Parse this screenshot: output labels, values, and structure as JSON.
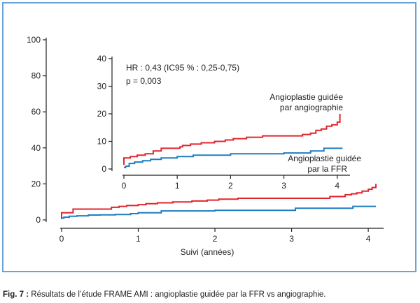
{
  "chart_data": [
    {
      "type": "line",
      "xlabel": "Suivi (années)",
      "xlim": [
        0,
        4.2
      ],
      "ylim": [
        0,
        100
      ],
      "x_ticks": [
        "0",
        "1",
        "2",
        "3",
        "4"
      ],
      "y_ticks": [
        "0",
        "20",
        "40",
        "60",
        "80",
        "100"
      ],
      "series": [
        {
          "color": "#e0262d",
          "x": [
            0.0,
            0.0,
            0.15,
            0.15,
            0.5,
            0.65,
            0.75,
            0.85,
            1.0,
            1.1,
            1.25,
            1.45,
            1.7,
            1.9,
            2.05,
            2.3,
            2.6,
            3.0,
            3.3,
            3.5,
            3.7,
            3.78,
            3.85,
            3.92,
            4.0,
            4.05,
            4.1
          ],
          "y": [
            0.5,
            4.0,
            4.0,
            6.0,
            6.0,
            7.0,
            7.5,
            8.0,
            8.5,
            9.0,
            9.5,
            10.0,
            10.5,
            11.0,
            11.5,
            12.0,
            12.0,
            12.0,
            12.0,
            13.0,
            14.0,
            14.5,
            15.0,
            16.0,
            17.0,
            18.0,
            20.0
          ]
        },
        {
          "color": "#1f7dc0",
          "x": [
            0.0,
            0.03,
            0.1,
            0.2,
            0.35,
            0.5,
            0.7,
            0.9,
            1.0,
            1.3,
            2.0,
            3.05,
            3.5,
            3.8,
            4.1
          ],
          "y": [
            1.0,
            1.5,
            2.0,
            2.3,
            2.7,
            2.8,
            3.0,
            3.5,
            4.0,
            5.0,
            5.3,
            6.5,
            6.5,
            7.5,
            7.5
          ]
        }
      ]
    },
    {
      "type": "line",
      "xlim": [
        0,
        4.2
      ],
      "ylim": [
        0,
        40
      ],
      "x_ticks": [
        "0",
        "1",
        "2",
        "3",
        "4"
      ],
      "y_ticks": [
        "0",
        "10",
        "20",
        "30",
        "40"
      ],
      "series": [
        {
          "name": "Angioplastie guidée par angiographie",
          "color": "#e0262d",
          "x": [
            0.0,
            0.0,
            0.12,
            0.12,
            0.25,
            0.4,
            0.55,
            0.7,
            1.0,
            1.05,
            1.1,
            1.25,
            1.45,
            1.7,
            1.9,
            2.05,
            2.3,
            2.6,
            3.0,
            3.35,
            3.5,
            3.6,
            3.7,
            3.8,
            3.9,
            4.0,
            4.05
          ],
          "y": [
            1.5,
            4.0,
            4.0,
            4.5,
            5.0,
            5.5,
            6.5,
            7.5,
            7.5,
            8.0,
            8.5,
            9.0,
            9.5,
            10.0,
            10.5,
            11.0,
            11.5,
            12.0,
            12.0,
            12.5,
            13.0,
            14.0,
            14.5,
            15.5,
            16.0,
            17.0,
            20.0
          ]
        },
        {
          "name": "Angioplastie guidée par la FFR",
          "color": "#1f7dc0",
          "x": [
            0.0,
            0.03,
            0.1,
            0.2,
            0.35,
            0.5,
            0.7,
            1.0,
            1.3,
            2.0,
            3.0,
            3.5,
            3.75,
            4.1
          ],
          "y": [
            0.5,
            1.0,
            2.0,
            2.5,
            3.0,
            3.5,
            4.0,
            4.5,
            5.0,
            5.5,
            5.8,
            6.5,
            7.5,
            7.5
          ]
        }
      ]
    }
  ],
  "annotations": {
    "hr": "HR : 0,43 (IC95 % : 0,25-0,75)",
    "p": "p = 0,003",
    "red_line1": "Angioplastie guidée",
    "red_line2": "par angiographie",
    "blue_line1": "Angioplastie guidée",
    "blue_line2": "par la FFR"
  },
  "caption": {
    "fig": "Fig. 7 :",
    "text": " Résultats de l’étude FRAME AMI : angioplastie guidée par la FFR vs angiographie."
  }
}
